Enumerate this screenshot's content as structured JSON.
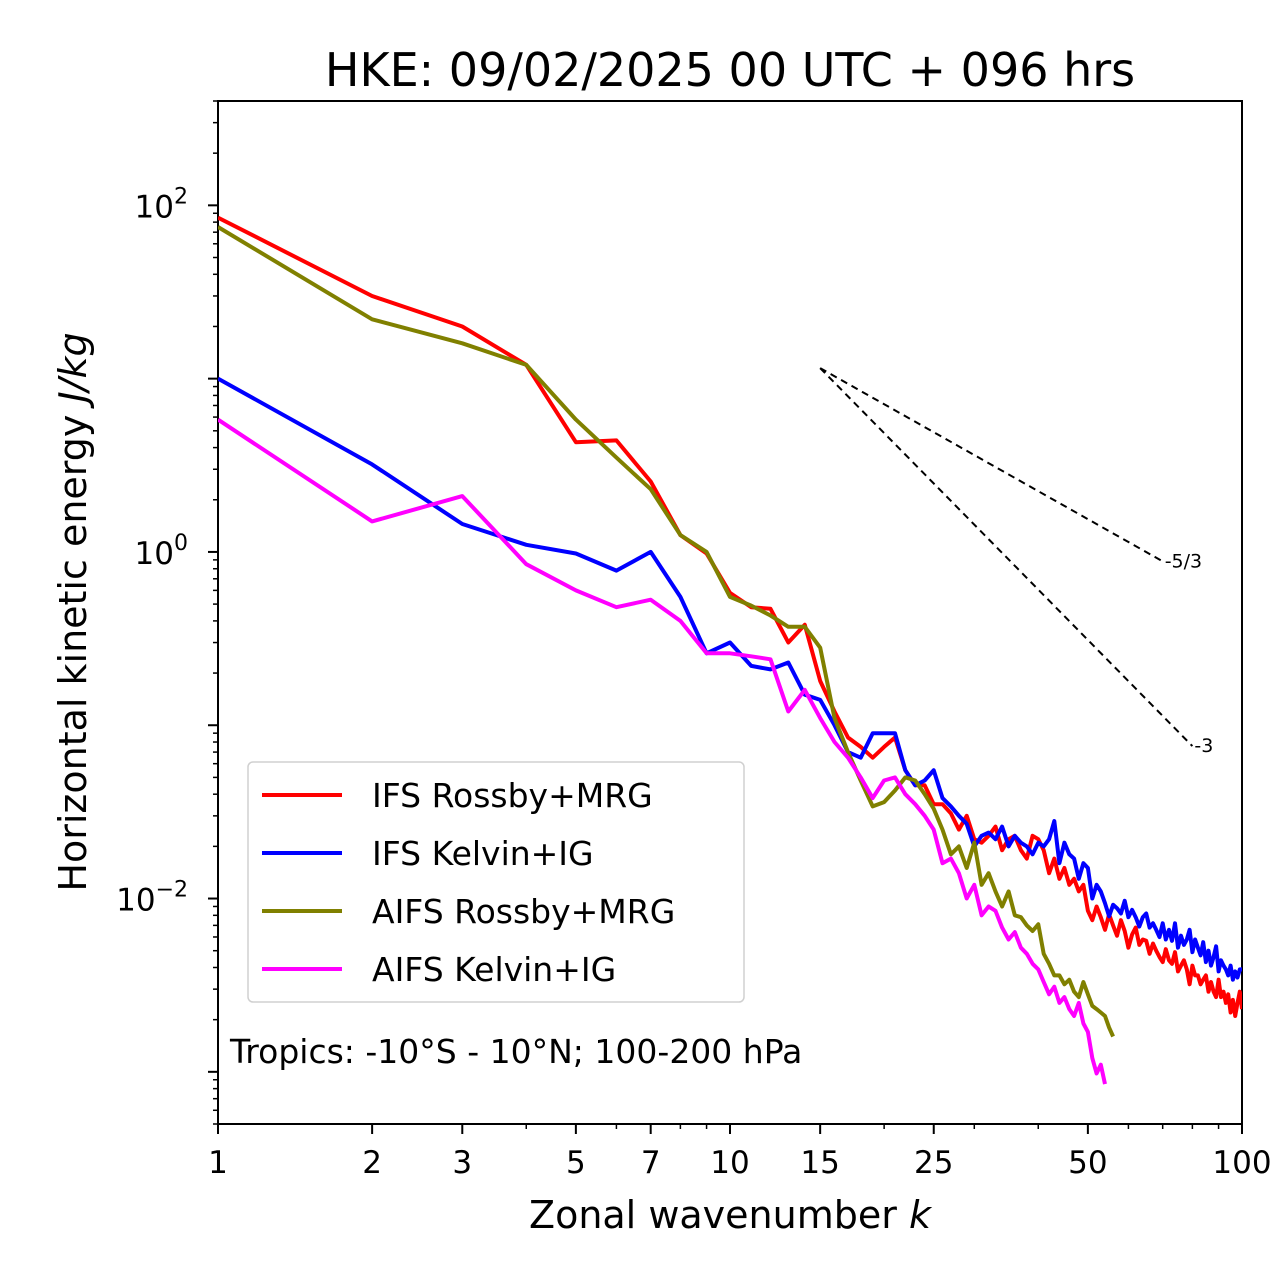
{
  "chart_data": {
    "type": "line",
    "title": "HKE: 09/02/2025 00 UTC + 096 hrs",
    "xlabel": "Zonal wavenumber",
    "xlabel_var": "k",
    "ylabel": "Horizontal kinetic energy",
    "ylabel_unit": "J/kg",
    "xscale": "log",
    "yscale": "log",
    "xlim": [
      1,
      100
    ],
    "ylim": [
      0.0005,
      400
    ],
    "xticks": [
      1,
      2,
      3,
      5,
      7,
      10,
      15,
      25,
      50,
      100
    ],
    "xtick_labels": [
      "1",
      "2",
      "3",
      "5",
      "7",
      "10",
      "15",
      "25",
      "50",
      "100"
    ],
    "yticks": [
      {
        "value": 100,
        "base": "10",
        "exp": "2"
      },
      {
        "value": 1,
        "base": "10",
        "exp": "0"
      },
      {
        "value": 0.01,
        "base": "10",
        "exp": "−2"
      }
    ],
    "annotation": "Tropics: -10°S - 10°N; 100-200 hPa",
    "legend_position": "lower-left",
    "reference_slopes": [
      {
        "label": "-5/3",
        "slope": -1.6667,
        "x_start": 15,
        "x_end": 70,
        "y_start": 11.5
      },
      {
        "label": "-3",
        "slope": -3,
        "x_start": 15,
        "x_end": 80,
        "y_start": 11.5
      }
    ],
    "series": [
      {
        "name": "IFS Rossby+MRG",
        "color": "#ff0000",
        "x": [
          1,
          2,
          3,
          4,
          5,
          6,
          7,
          8,
          9,
          10,
          11,
          12,
          13,
          14,
          15,
          16,
          17,
          18,
          19,
          20,
          21,
          22,
          23,
          24,
          25,
          26,
          27,
          28,
          29,
          30,
          31,
          32,
          33,
          34,
          35,
          36,
          37,
          38,
          39,
          40,
          41,
          42,
          43,
          44,
          45,
          46,
          47,
          48,
          49,
          50,
          51,
          52,
          53,
          54,
          55,
          56,
          57,
          58,
          59,
          60,
          61,
          62,
          63,
          64,
          65,
          66,
          67,
          68,
          69,
          70,
          71,
          72,
          73,
          74,
          75,
          76,
          77,
          78,
          79,
          80,
          81,
          82,
          83,
          84,
          85,
          86,
          87,
          88,
          89,
          90,
          91,
          92,
          93,
          94,
          95,
          96,
          97,
          98,
          99,
          100
        ],
        "y": [
          85,
          30,
          20,
          12,
          4.3,
          4.4,
          2.55,
          1.25,
          0.98,
          0.58,
          0.48,
          0.47,
          0.3,
          0.38,
          0.18,
          0.12,
          0.085,
          0.075,
          0.065,
          0.075,
          0.085,
          0.055,
          0.045,
          0.045,
          0.035,
          0.035,
          0.031,
          0.025,
          0.03,
          0.022,
          0.021,
          0.023,
          0.026,
          0.019,
          0.022,
          0.023,
          0.019,
          0.017,
          0.023,
          0.022,
          0.019,
          0.014,
          0.017,
          0.013,
          0.015,
          0.012,
          0.013,
          0.011,
          0.012,
          0.0085,
          0.0075,
          0.009,
          0.0078,
          0.0066,
          0.0081,
          0.007,
          0.0061,
          0.0075,
          0.0065,
          0.0052,
          0.0062,
          0.0068,
          0.0054,
          0.0058,
          0.0057,
          0.0048,
          0.0055,
          0.005,
          0.0046,
          0.0043,
          0.0051,
          0.0044,
          0.0042,
          0.0049,
          0.0038,
          0.0041,
          0.0044,
          0.0039,
          0.0032,
          0.0041,
          0.0036,
          0.0036,
          0.0032,
          0.0034,
          0.0036,
          0.0029,
          0.0033,
          0.0029,
          0.0027,
          0.0034,
          0.0027,
          0.0029,
          0.0025,
          0.0028,
          0.0022,
          0.0026,
          0.0021,
          0.0025,
          0.0029,
          0.0023
        ]
      },
      {
        "name": "IFS Kelvin+IG",
        "color": "#0000ff",
        "x": [
          1,
          2,
          3,
          4,
          5,
          6,
          7,
          8,
          9,
          10,
          11,
          12,
          13,
          14,
          15,
          16,
          17,
          18,
          19,
          20,
          21,
          22,
          23,
          24,
          25,
          26,
          27,
          28,
          29,
          30,
          31,
          32,
          33,
          34,
          35,
          36,
          37,
          38,
          39,
          40,
          41,
          42,
          43,
          44,
          45,
          46,
          47,
          48,
          49,
          50,
          51,
          52,
          53,
          54,
          55,
          56,
          57,
          58,
          59,
          60,
          61,
          62,
          63,
          64,
          65,
          66,
          67,
          68,
          69,
          70,
          71,
          72,
          73,
          74,
          75,
          76,
          77,
          78,
          79,
          80,
          81,
          82,
          83,
          84,
          85,
          86,
          87,
          88,
          89,
          90,
          91,
          92,
          93,
          94,
          95,
          96,
          97,
          98,
          99,
          100
        ],
        "y": [
          10,
          3.2,
          1.45,
          1.1,
          0.98,
          0.78,
          1.0,
          0.55,
          0.26,
          0.3,
          0.22,
          0.21,
          0.23,
          0.15,
          0.14,
          0.1,
          0.07,
          0.065,
          0.09,
          0.09,
          0.09,
          0.055,
          0.045,
          0.048,
          0.055,
          0.038,
          0.034,
          0.03,
          0.027,
          0.02,
          0.023,
          0.024,
          0.022,
          0.026,
          0.02,
          0.023,
          0.021,
          0.02,
          0.018,
          0.021,
          0.02,
          0.022,
          0.028,
          0.016,
          0.021,
          0.018,
          0.017,
          0.013,
          0.016,
          0.015,
          0.01,
          0.012,
          0.011,
          0.0094,
          0.0079,
          0.0092,
          0.0088,
          0.0082,
          0.0097,
          0.0078,
          0.0086,
          0.0078,
          0.0069,
          0.0078,
          0.0082,
          0.0068,
          0.0072,
          0.0066,
          0.006,
          0.0072,
          0.0058,
          0.0066,
          0.0057,
          0.0072,
          0.0052,
          0.0061,
          0.0054,
          0.0058,
          0.0066,
          0.0049,
          0.0058,
          0.0052,
          0.0047,
          0.0056,
          0.0043,
          0.005,
          0.0041,
          0.0046,
          0.0053,
          0.0038,
          0.0044,
          0.0041,
          0.0039,
          0.0036,
          0.0041,
          0.0034,
          0.0038,
          0.0035,
          0.0039,
          0.0039
        ]
      },
      {
        "name": "AIFS Rossby+MRG",
        "color": "#808000",
        "x": [
          1,
          2,
          3,
          4,
          5,
          6,
          7,
          8,
          9,
          10,
          11,
          12,
          13,
          14,
          15,
          16,
          17,
          18,
          19,
          20,
          21,
          22,
          23,
          24,
          25,
          26,
          27,
          28,
          29,
          30,
          31,
          32,
          33,
          34,
          35,
          36,
          37,
          38,
          39,
          40,
          41,
          42,
          43,
          44,
          45,
          46,
          47,
          48,
          49,
          50,
          51,
          52,
          53,
          54,
          55,
          56
        ],
        "y": [
          75,
          22,
          16,
          12,
          5.8,
          3.5,
          2.3,
          1.25,
          1.0,
          0.55,
          0.49,
          0.43,
          0.37,
          0.37,
          0.28,
          0.11,
          0.07,
          0.048,
          0.034,
          0.036,
          0.042,
          0.05,
          0.048,
          0.04,
          0.033,
          0.025,
          0.018,
          0.02,
          0.015,
          0.021,
          0.012,
          0.014,
          0.011,
          0.009,
          0.011,
          0.008,
          0.0078,
          0.007,
          0.0065,
          0.0071,
          0.0048,
          0.0042,
          0.0036,
          0.0036,
          0.0032,
          0.0034,
          0.0029,
          0.0027,
          0.0033,
          0.0028,
          0.0024,
          0.0023,
          0.0022,
          0.0021,
          0.0018,
          0.0016
        ]
      },
      {
        "name": "AIFS Kelvin+IG",
        "color": "#ff00ff",
        "x": [
          1,
          2,
          3,
          4,
          5,
          6,
          7,
          8,
          9,
          10,
          11,
          12,
          13,
          14,
          15,
          16,
          17,
          18,
          19,
          20,
          21,
          22,
          23,
          24,
          25,
          26,
          27,
          28,
          29,
          30,
          31,
          32,
          33,
          34,
          35,
          36,
          37,
          38,
          39,
          40,
          41,
          42,
          43,
          44,
          45,
          46,
          47,
          48,
          49,
          50,
          51,
          52,
          53,
          54
        ],
        "y": [
          5.8,
          1.5,
          2.1,
          0.85,
          0.6,
          0.48,
          0.53,
          0.4,
          0.26,
          0.26,
          0.25,
          0.24,
          0.12,
          0.16,
          0.11,
          0.08,
          0.065,
          0.05,
          0.038,
          0.048,
          0.05,
          0.04,
          0.035,
          0.03,
          0.025,
          0.016,
          0.017,
          0.014,
          0.01,
          0.012,
          0.008,
          0.009,
          0.0085,
          0.0068,
          0.0058,
          0.0064,
          0.0052,
          0.0048,
          0.0042,
          0.0039,
          0.0033,
          0.0028,
          0.0031,
          0.0025,
          0.0027,
          0.0023,
          0.0021,
          0.0025,
          0.0019,
          0.0017,
          0.0012,
          0.00098,
          0.0011,
          0.00085
        ]
      }
    ]
  }
}
